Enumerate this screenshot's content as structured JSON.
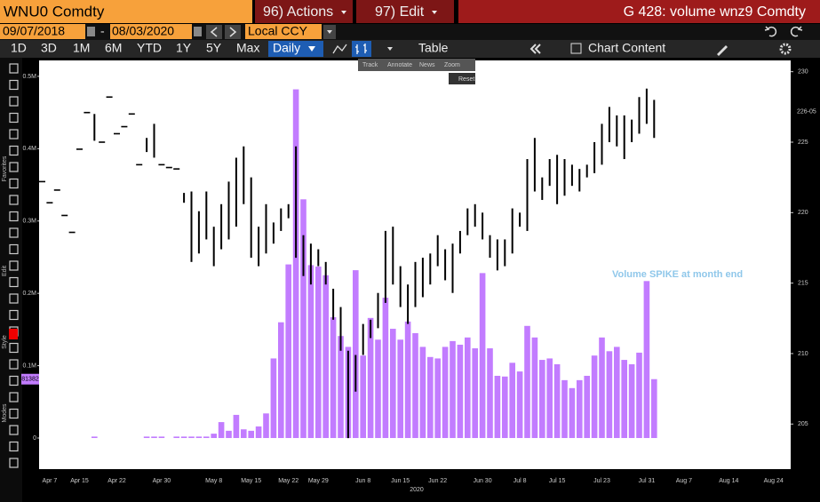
{
  "header": {
    "ticker": "WNU0 Comdty",
    "actions": "96) Actions",
    "edit": "97) Edit",
    "title": "G 428: volume wnz9 Comdty"
  },
  "controls": {
    "start_date": "09/07/2018",
    "separator": "-",
    "end_date": "08/03/2020",
    "currency": "Local CCY"
  },
  "periods": [
    "1D",
    "3D",
    "1M",
    "6M",
    "YTD",
    "1Y",
    "5Y",
    "Max"
  ],
  "frequency": "Daily",
  "toolbar": {
    "table": "Table",
    "chart_content": "Chart Content"
  },
  "hover_tools": {
    "items": [
      "Track",
      "Annotate",
      "News",
      "Zoom"
    ],
    "reset": "Reset"
  },
  "sidebar": [
    "Favorites",
    "Edit",
    "Style",
    "Modes"
  ],
  "chart_data": {
    "type": "combo",
    "x_label": "2020",
    "annotation": "Volume SPIKE at month end",
    "last_price_label": "226-05",
    "categories": [
      null,
      "Apr 7",
      null,
      null,
      null,
      "Apr 15",
      null,
      null,
      null,
      null,
      "Apr 22",
      null,
      null,
      null,
      null,
      null,
      "Apr 30",
      null,
      null,
      null,
      null,
      null,
      null,
      "May 8",
      null,
      null,
      null,
      null,
      "May 15",
      null,
      null,
      null,
      null,
      "May 22",
      null,
      null,
      null,
      "May 29",
      null,
      null,
      null,
      null,
      null,
      "Jun 8",
      null,
      null,
      null,
      null,
      "Jun 15",
      null,
      null,
      null,
      null,
      "Jun 22",
      null,
      null,
      null,
      null,
      null,
      "Jun 30",
      null,
      null,
      null,
      null,
      "Jul 8",
      null,
      null,
      null,
      null,
      "Jul 15",
      null,
      null,
      null,
      null,
      null,
      "Jul 23",
      null,
      null,
      null,
      null,
      null,
      "Jul 31",
      null,
      null,
      null,
      null,
      "Aug 7",
      null,
      null,
      null,
      null,
      null,
      "Aug 14",
      null,
      null,
      null,
      null,
      null,
      "Aug 24"
    ],
    "ylim": [
      -43000,
      522000
    ],
    "yticks": [
      {
        "value": 0,
        "label": "0"
      },
      {
        "value": 100000,
        "label": "0.1M"
      },
      {
        "value": 200000,
        "label": "0.2M"
      },
      {
        "value": 300000,
        "label": "0.3M"
      },
      {
        "value": 400000,
        "label": "0.4M"
      },
      {
        "value": 500000,
        "label": "0.5M"
      }
    ],
    "y2lim": [
      201.8,
      230.8
    ],
    "y2ticks": [
      205,
      210,
      215,
      220,
      225,
      230
    ],
    "grid": false,
    "series": [
      {
        "type": "bar",
        "color": "#c27cff",
        "values": [
          null,
          null,
          null,
          null,
          null,
          null,
          null,
          2000,
          null,
          null,
          null,
          null,
          null,
          null,
          2000,
          2000,
          2000,
          null,
          2000,
          2000,
          2000,
          2000,
          2000,
          6000,
          22000,
          10000,
          32000,
          12000,
          10000,
          16000,
          34000,
          110000,
          160000,
          240000,
          482000,
          330000,
          239000,
          237000,
          225000,
          167000,
          141000,
          126000,
          232000,
          114000,
          166000,
          136000,
          194000,
          151000,
          136000,
          161000,
          145000,
          126000,
          112000,
          110000,
          126000,
          134000,
          129000,
          139000,
          124000,
          228000,
          124000,
          86000,
          85000,
          104000,
          92000,
          155000,
          139000,
          108000,
          110000,
          102000,
          80000,
          69000,
          80000,
          86000,
          114000,
          139000,
          120000,
          126000,
          108000,
          102000,
          118000,
          217000,
          81382,
          null,
          null,
          null,
          null,
          null,
          null,
          null,
          null,
          null,
          null,
          null,
          null,
          null,
          null,
          null,
          null
        ]
      },
      {
        "type": "range",
        "axis": "y2",
        "color": "#000000",
        "high": [
          222.2,
          220.7,
          221.6,
          219.8,
          218.6,
          224.5,
          227.1,
          227.0,
          225.0,
          228.2,
          225.6,
          226.1,
          227.0,
          223.4,
          225.3,
          226.3,
          223.4,
          223.2,
          223.1,
          221.4,
          221.5,
          220.1,
          221.5,
          219.0,
          220.6,
          222.2,
          223.9,
          224.7,
          222.5,
          219.0,
          220.6,
          219.3,
          220.3,
          220.6,
          224.7,
          218.4,
          217.8,
          217.4,
          216.5,
          214.6,
          213.3,
          210.2,
          209.9,
          212.1,
          212.4,
          214.3,
          218.7,
          219.0,
          216.2,
          214.9,
          216.5,
          216.8,
          217.1,
          218.4,
          217.4,
          217.8,
          218.7,
          220.3,
          220.6,
          220.0,
          218.4,
          218.1,
          218.1,
          220.3,
          220.0,
          223.8,
          225.3,
          222.5,
          223.8,
          224.1,
          223.8,
          223.4,
          223.1,
          223.4,
          225.0,
          226.3,
          227.5,
          226.9,
          226.9,
          226.6,
          228.2,
          228.8,
          228.0,
          null,
          null,
          null,
          null,
          null,
          null,
          null,
          null,
          null,
          null,
          null,
          null,
          null,
          null,
          null,
          null
        ],
        "low": [
          222.2,
          220.7,
          221.6,
          219.8,
          218.6,
          224.5,
          227.1,
          225.1,
          225.0,
          228.2,
          225.6,
          226.1,
          227.0,
          223.4,
          224.3,
          223.9,
          223.4,
          223.2,
          223.1,
          220.7,
          216.5,
          217.1,
          218.1,
          216.2,
          217.4,
          218.1,
          219.0,
          220.6,
          216.8,
          216.2,
          217.1,
          217.8,
          218.7,
          219.6,
          216.8,
          215.5,
          214.9,
          216.2,
          214.9,
          212.4,
          210.2,
          204.0,
          207.3,
          209.9,
          211.1,
          211.8,
          213.6,
          214.9,
          213.3,
          212.1,
          213.3,
          214.0,
          214.9,
          216.2,
          215.2,
          214.3,
          217.1,
          218.4,
          219.0,
          218.1,
          216.8,
          215.9,
          216.2,
          217.1,
          219.0,
          218.7,
          221.5,
          220.9,
          221.9,
          220.6,
          221.2,
          221.9,
          221.5,
          222.5,
          222.8,
          223.4,
          225.0,
          224.7,
          223.8,
          225.0,
          225.6,
          226.3,
          225.3,
          null,
          null,
          null,
          null,
          null,
          null,
          null,
          null,
          null,
          null,
          null,
          null,
          null,
          null,
          null,
          null
        ]
      }
    ]
  }
}
